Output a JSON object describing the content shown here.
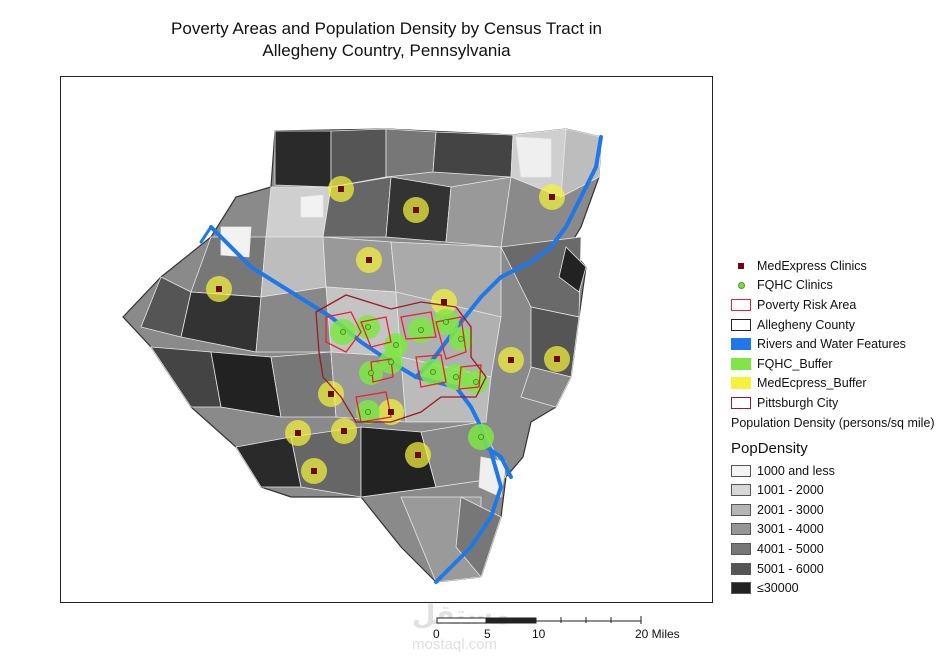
{
  "title": {
    "line1": "Poverty Areas and Population Density by Census Tract in",
    "line2": "Allegheny Country, Pennsylvania"
  },
  "legend": {
    "items": [
      {
        "label": "MedExpress Clinics",
        "symbol": "square-marker",
        "color": "#6b0a12"
      },
      {
        "label": "FQHC Clinics",
        "symbol": "dot-marker",
        "color": "#7ddb3b"
      },
      {
        "label": "Poverty Risk Area",
        "symbol": "outline",
        "color": "#e3262b"
      },
      {
        "label": "Allegheny County",
        "symbol": "outline",
        "color": "#222222"
      },
      {
        "label": "Rivers and Water Features",
        "symbol": "fill",
        "color": "#1f78e8"
      },
      {
        "label": "FQHC_Buffer",
        "symbol": "fill",
        "color": "#7fe645"
      },
      {
        "label": "MedEcpress_Buffer",
        "symbol": "fill",
        "color": "#f4f23c"
      },
      {
        "label": "Pittsburgh City",
        "symbol": "outline",
        "color": "#9b1b24"
      }
    ],
    "density_caption": "Population Density (persons/sq mile)",
    "density_field": "PopDensity",
    "classes": [
      {
        "label": "1000 and less",
        "color": "#f4f4f4"
      },
      {
        "label": "1001 - 2000",
        "color": "#d8d8d8"
      },
      {
        "label": "2001 - 3000",
        "color": "#b5b5b5"
      },
      {
        "label": "3001 - 4000",
        "color": "#969696"
      },
      {
        "label": "4001 - 5000",
        "color": "#777777"
      },
      {
        "label": "5001 - 6000",
        "color": "#555555"
      },
      {
        "label": "≤30000",
        "color": "#222222"
      }
    ]
  },
  "scale": {
    "ticks": [
      "0",
      "5",
      "10",
      "20 Miles"
    ]
  },
  "watermark": {
    "text": "مستقل",
    "sub": "mostaql.com"
  }
}
